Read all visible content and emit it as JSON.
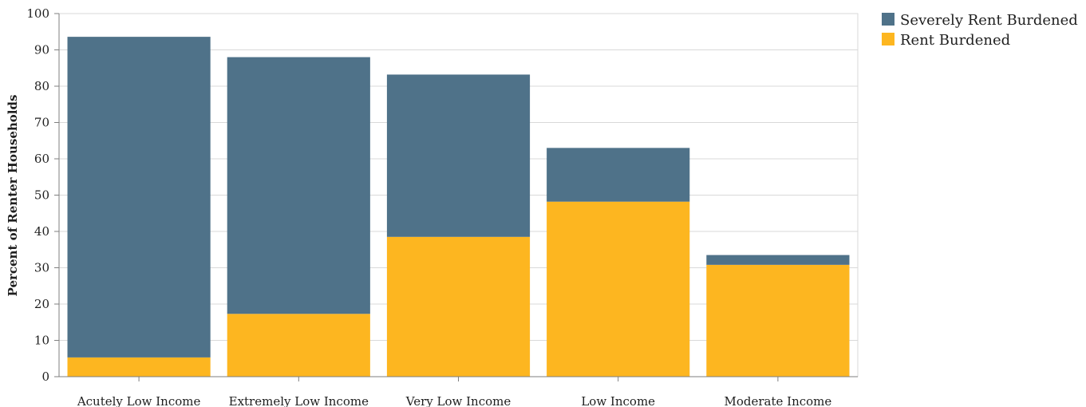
{
  "chart_data": {
    "type": "bar",
    "stacked": true,
    "title": "",
    "xlabel": "",
    "ylabel": "Percent of Renter Households",
    "ylim": [
      0,
      100
    ],
    "yticks": [
      0,
      10,
      20,
      30,
      40,
      50,
      60,
      70,
      80,
      90,
      100
    ],
    "grid": true,
    "legend_position": "top-right",
    "categories": [
      "Acutely Low Income",
      "Extremely Low Income",
      "Very Low Income",
      "Low Income",
      "Moderate Income"
    ],
    "series": [
      {
        "name": "Rent Burdened",
        "color": "#FDB620",
        "values": [
          5.3,
          17.3,
          38.5,
          48.2,
          30.8
        ]
      },
      {
        "name": "Severely Rent Burdened",
        "color": "#4F7289",
        "values": [
          88.3,
          70.7,
          44.7,
          14.8,
          2.7
        ]
      }
    ],
    "legend": [
      "Severely Rent Burdened",
      "Rent Burdened"
    ]
  }
}
